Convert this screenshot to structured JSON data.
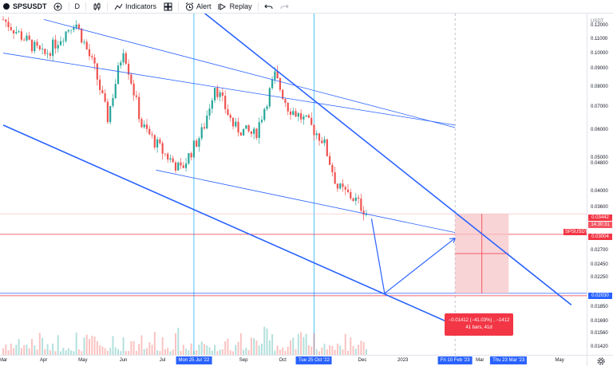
{
  "toolbar": {
    "symbol": "SPSUSDT",
    "interval": "D",
    "indicators_label": "Indicators",
    "alert_label": "Alert",
    "replay_label": "Replay"
  },
  "price_axis": {
    "currency": "USDT",
    "ticks": [
      "0.12000",
      "0.11000",
      "0.10000",
      "0.09000",
      "0.08000",
      "0.07000",
      "0.06000",
      "0.05000",
      "0.04800",
      "0.04000",
      "0.03600",
      "0.02700",
      "0.02450",
      "0.02250",
      "0.01850",
      "0.01690",
      "0.01560",
      "0.01420"
    ],
    "current_symbol": "SPSUSDT",
    "current_price": "0.03442",
    "countdown": "14:30:31",
    "level_1": "0.03004",
    "level_2": "0.02030"
  },
  "time_axis": {
    "ticks": [
      "Mar",
      "Apr",
      "May",
      "Jun",
      "Jul",
      "Sep",
      "Oct",
      "Dec",
      "2023",
      "Mar",
      "May"
    ],
    "highlights": [
      "Mon 25 Jul '22",
      "Tue 25 Oct '22",
      "Fri 10 Feb '23",
      "Thu 23 Mar '23"
    ]
  },
  "measure": {
    "line1": "−0.01412 (−41.03%) , −1412",
    "line2": "41 bars, 41d"
  },
  "colors": {
    "up": "#26a69a",
    "down": "#ef5350",
    "trend": "#2962ff",
    "highlight": "#2962ff",
    "alert_red": "#f23645",
    "measure_fill": "#f7c5c8"
  },
  "chart_data": {
    "type": "candlestick",
    "title": "",
    "ylabel": "USDT",
    "y_scale": "log",
    "ylim": [
      0.0135,
      0.13
    ],
    "xlim": [
      "2022-03-01",
      "2023-05-15"
    ],
    "highlighted_dates": [
      "2022-07-25",
      "2022-10-25",
      "2023-02-10",
      "2023-03-23"
    ],
    "close_series": [
      {
        "date": "2022-03-01",
        "close": 0.125
      },
      {
        "date": "2022-03-15",
        "close": 0.112
      },
      {
        "date": "2022-04-01",
        "close": 0.098
      },
      {
        "date": "2022-04-15",
        "close": 0.112
      },
      {
        "date": "2022-04-25",
        "close": 0.124
      },
      {
        "date": "2022-05-10",
        "close": 0.09
      },
      {
        "date": "2022-05-20",
        "close": 0.065
      },
      {
        "date": "2022-06-01",
        "close": 0.104
      },
      {
        "date": "2022-06-15",
        "close": 0.062
      },
      {
        "date": "2022-07-01",
        "close": 0.052
      },
      {
        "date": "2022-07-15",
        "close": 0.046
      },
      {
        "date": "2022-08-01",
        "close": 0.06
      },
      {
        "date": "2022-08-10",
        "close": 0.081
      },
      {
        "date": "2022-08-25",
        "close": 0.061
      },
      {
        "date": "2022-09-10",
        "close": 0.058
      },
      {
        "date": "2022-09-25",
        "close": 0.086
      },
      {
        "date": "2022-10-05",
        "close": 0.07
      },
      {
        "date": "2022-10-20",
        "close": 0.063
      },
      {
        "date": "2022-11-01",
        "close": 0.056
      },
      {
        "date": "2022-11-12",
        "close": 0.041
      },
      {
        "date": "2022-11-25",
        "close": 0.038
      },
      {
        "date": "2022-12-05",
        "close": 0.0344
      }
    ],
    "levels": [
      0.03442,
      0.03004,
      0.0203
    ],
    "measure": {
      "change": -0.01412,
      "percent": -41.03,
      "bars": 41
    }
  }
}
